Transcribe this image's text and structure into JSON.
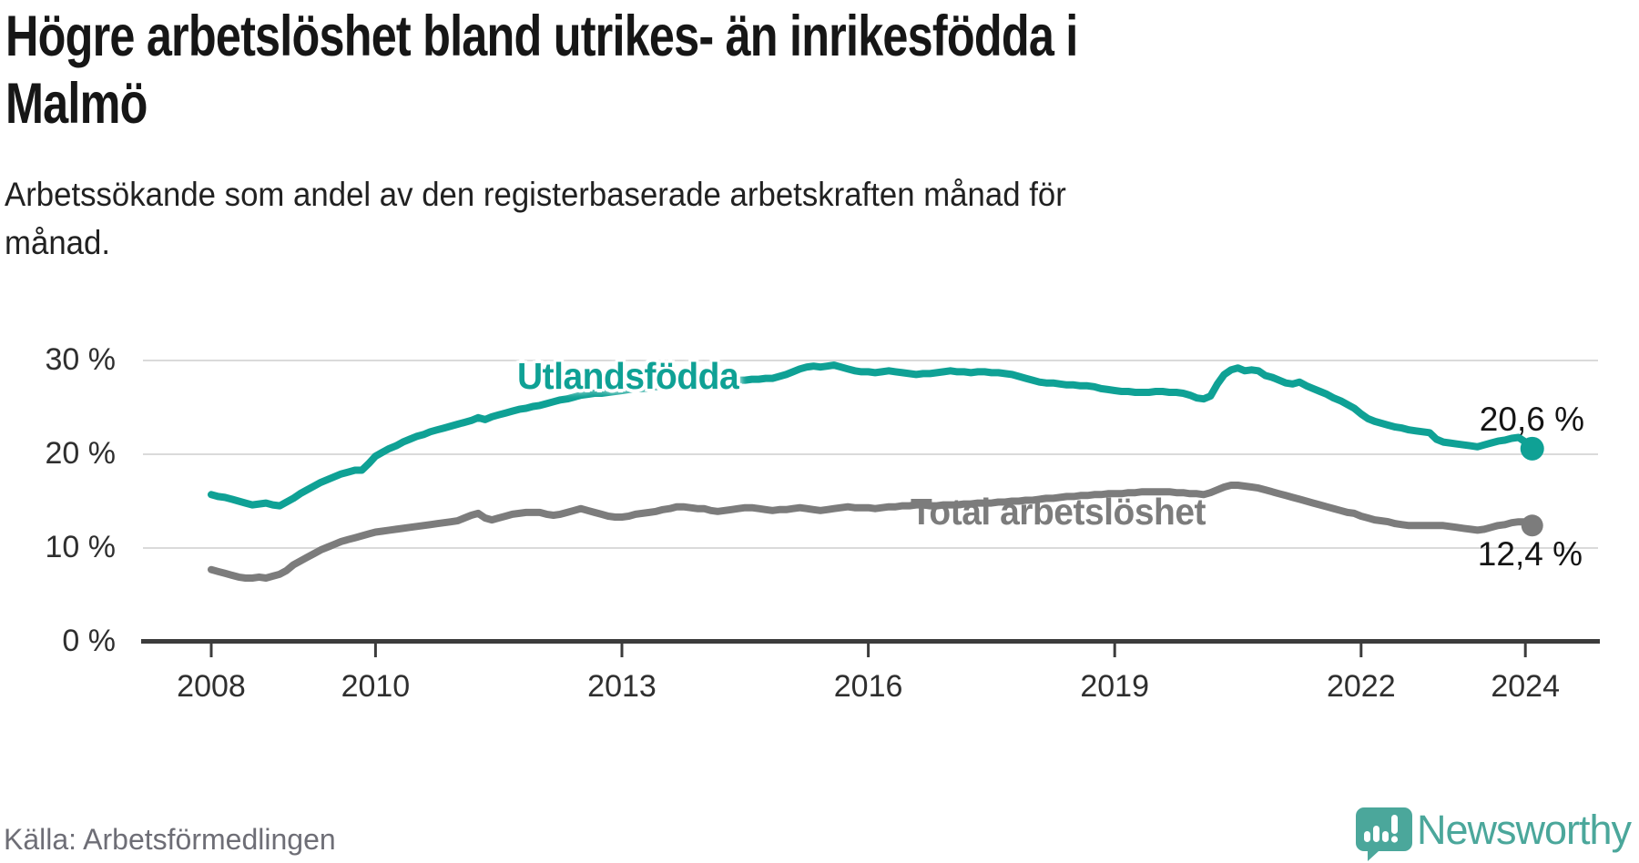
{
  "header": {
    "title": "Högre arbetslöshet bland utrikes- än inrikesfödda i\nMalmö",
    "subtitle": "Arbetssökande som andel av den registerbaserade arbetskraften månad för\nmånad."
  },
  "footer": {
    "source": "Källa: Arbetsförmedlingen",
    "brand": "Newsworthy",
    "logo_icon": "bar-chart-speech-bubble-icon"
  },
  "colors": {
    "series_foreign_born": "#0fa195",
    "series_total": "#7c7c7c",
    "gridline": "#dadada",
    "axis": "#3c3c3c",
    "tick_text": "#2f2f2f",
    "value_label_text": "#141414",
    "logo_teal": "#4ba79b"
  },
  "chart_data": {
    "type": "line",
    "title": "Högre arbetslöshet bland utrikes- än inrikesfödda i Malmö",
    "xlabel": "",
    "ylabel": "",
    "x_start_year": 2008,
    "x_step": "month",
    "x_end": "2024-02",
    "grid": true,
    "legend_position": "inline-labels",
    "ylim": [
      0,
      32
    ],
    "x_ticks": [
      2008,
      2010,
      2013,
      2016,
      2019,
      2022,
      2024
    ],
    "y_ticks": [
      {
        "value": 0,
        "label": "0 %"
      },
      {
        "value": 10,
        "label": "10 %"
      },
      {
        "value": 20,
        "label": "20 %"
      },
      {
        "value": 30,
        "label": "30 %"
      }
    ],
    "series": [
      {
        "name": "Utlandsfödda",
        "color": "#0fa195",
        "end_label": "20,6 %",
        "end_value": 20.6,
        "values": [
          15.7,
          15.5,
          15.4,
          15.2,
          15.0,
          14.8,
          14.6,
          14.7,
          14.8,
          14.6,
          14.5,
          14.9,
          15.3,
          15.8,
          16.2,
          16.6,
          17.0,
          17.3,
          17.6,
          17.9,
          18.1,
          18.3,
          18.3,
          19.0,
          19.8,
          20.2,
          20.6,
          20.9,
          21.3,
          21.6,
          21.9,
          22.1,
          22.4,
          22.6,
          22.8,
          23.0,
          23.2,
          23.4,
          23.6,
          23.9,
          23.7,
          24.0,
          24.2,
          24.4,
          24.6,
          24.8,
          24.9,
          25.1,
          25.2,
          25.4,
          25.6,
          25.8,
          25.9,
          26.1,
          26.3,
          26.4,
          26.5,
          26.5,
          26.6,
          26.7,
          26.8,
          26.9,
          27.0,
          27.0,
          27.1,
          27.2,
          27.3,
          27.3,
          27.4,
          27.4,
          27.5,
          27.5,
          27.6,
          27.7,
          27.7,
          27.8,
          27.8,
          27.9,
          27.9,
          28.0,
          28.0,
          28.1,
          28.1,
          28.3,
          28.5,
          28.8,
          29.1,
          29.3,
          29.4,
          29.3,
          29.4,
          29.5,
          29.3,
          29.1,
          28.9,
          28.8,
          28.8,
          28.7,
          28.8,
          28.9,
          28.8,
          28.7,
          28.6,
          28.5,
          28.6,
          28.6,
          28.7,
          28.8,
          28.9,
          28.8,
          28.8,
          28.7,
          28.8,
          28.8,
          28.7,
          28.7,
          28.6,
          28.5,
          28.3,
          28.1,
          27.9,
          27.7,
          27.6,
          27.6,
          27.5,
          27.4,
          27.4,
          27.3,
          27.3,
          27.2,
          27.0,
          26.9,
          26.8,
          26.7,
          26.7,
          26.6,
          26.6,
          26.6,
          26.7,
          26.7,
          26.6,
          26.6,
          26.5,
          26.3,
          26.0,
          25.9,
          26.2,
          27.5,
          28.5,
          29.0,
          29.2,
          28.9,
          29.0,
          28.9,
          28.4,
          28.2,
          27.9,
          27.6,
          27.5,
          27.7,
          27.3,
          27.0,
          26.7,
          26.4,
          26.0,
          25.7,
          25.3,
          24.9,
          24.3,
          23.8,
          23.5,
          23.3,
          23.1,
          22.9,
          22.8,
          22.6,
          22.5,
          22.4,
          22.3,
          21.6,
          21.3,
          21.2,
          21.1,
          21.0,
          20.9,
          20.8,
          21.0,
          21.2,
          21.4,
          21.5,
          21.7,
          21.8,
          21.3,
          20.6
        ]
      },
      {
        "name": "Total arbetslöshet",
        "color": "#7c7c7c",
        "end_label": "12,4 %",
        "end_value": 12.4,
        "values": [
          7.7,
          7.5,
          7.3,
          7.1,
          6.9,
          6.8,
          6.8,
          6.9,
          6.8,
          7.0,
          7.2,
          7.6,
          8.2,
          8.6,
          9.0,
          9.4,
          9.8,
          10.1,
          10.4,
          10.7,
          10.9,
          11.1,
          11.3,
          11.5,
          11.7,
          11.8,
          11.9,
          12.0,
          12.1,
          12.2,
          12.3,
          12.4,
          12.5,
          12.6,
          12.7,
          12.8,
          12.9,
          13.2,
          13.5,
          13.7,
          13.2,
          13.0,
          13.2,
          13.4,
          13.6,
          13.7,
          13.8,
          13.8,
          13.8,
          13.6,
          13.5,
          13.6,
          13.8,
          14.0,
          14.2,
          14.0,
          13.8,
          13.6,
          13.4,
          13.3,
          13.3,
          13.4,
          13.6,
          13.7,
          13.8,
          13.9,
          14.1,
          14.2,
          14.4,
          14.4,
          14.3,
          14.2,
          14.2,
          14.0,
          13.9,
          14.0,
          14.1,
          14.2,
          14.3,
          14.3,
          14.2,
          14.1,
          14.0,
          14.1,
          14.1,
          14.2,
          14.3,
          14.2,
          14.1,
          14.0,
          14.1,
          14.2,
          14.3,
          14.4,
          14.3,
          14.3,
          14.3,
          14.2,
          14.3,
          14.4,
          14.4,
          14.5,
          14.5,
          14.6,
          14.6,
          14.5,
          14.5,
          14.6,
          14.6,
          14.6,
          14.7,
          14.7,
          14.8,
          14.8,
          14.8,
          14.9,
          14.9,
          15.0,
          15.0,
          15.1,
          15.1,
          15.2,
          15.3,
          15.3,
          15.4,
          15.5,
          15.5,
          15.6,
          15.6,
          15.7,
          15.7,
          15.8,
          15.8,
          15.8,
          15.9,
          15.9,
          16.0,
          16.0,
          16.0,
          16.0,
          16.0,
          15.9,
          15.9,
          15.8,
          15.8,
          15.7,
          15.9,
          16.2,
          16.5,
          16.7,
          16.7,
          16.6,
          16.5,
          16.4,
          16.2,
          16.0,
          15.8,
          15.6,
          15.4,
          15.2,
          15.0,
          14.8,
          14.6,
          14.4,
          14.2,
          14.0,
          13.8,
          13.7,
          13.4,
          13.2,
          13.0,
          12.9,
          12.8,
          12.6,
          12.5,
          12.4,
          12.4,
          12.4,
          12.4,
          12.4,
          12.4,
          12.3,
          12.2,
          12.1,
          12.0,
          11.9,
          12.0,
          12.2,
          12.4,
          12.5,
          12.7,
          12.8,
          12.8,
          12.4
        ]
      }
    ]
  }
}
